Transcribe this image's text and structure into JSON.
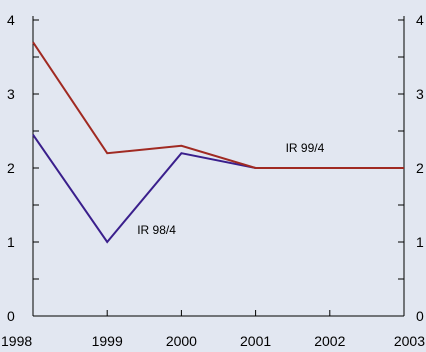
{
  "chart_data": {
    "type": "line",
    "title": "",
    "xlabel": "",
    "ylabel": "",
    "x": [
      1998,
      1999,
      2000,
      2001,
      2002,
      2003
    ],
    "x_tick_labels": [
      "1998",
      "1999",
      "2000",
      "2001",
      "2002",
      "2003"
    ],
    "xlim": [
      1998,
      2003
    ],
    "ylim": [
      0,
      4
    ],
    "y_ticks_labeled": [
      0,
      1,
      2,
      3,
      4
    ],
    "y_tick_labels_left": [
      "0",
      "1",
      "2",
      "3",
      "4"
    ],
    "y_tick_labels_right": [
      "0",
      "1",
      "2",
      "3",
      "4"
    ],
    "y_minor_ticks": [
      0.5,
      1.5,
      2.5,
      3.5
    ],
    "grid": false,
    "background_color": "#e2e7f1",
    "series": [
      {
        "name": "IR 98/4",
        "color": "#3a1f8c",
        "x": [
          1998,
          1999,
          2000,
          2001,
          2002,
          2003
        ],
        "values": [
          2.45,
          1.0,
          2.2,
          2.0,
          2.0,
          2.0
        ]
      },
      {
        "name": "IR 99/4",
        "color": "#a02a22",
        "x": [
          1998,
          1999,
          2000,
          2001,
          2002,
          2003
        ],
        "values": [
          3.7,
          2.2,
          2.3,
          2.0,
          2.0,
          2.0
        ]
      }
    ]
  }
}
